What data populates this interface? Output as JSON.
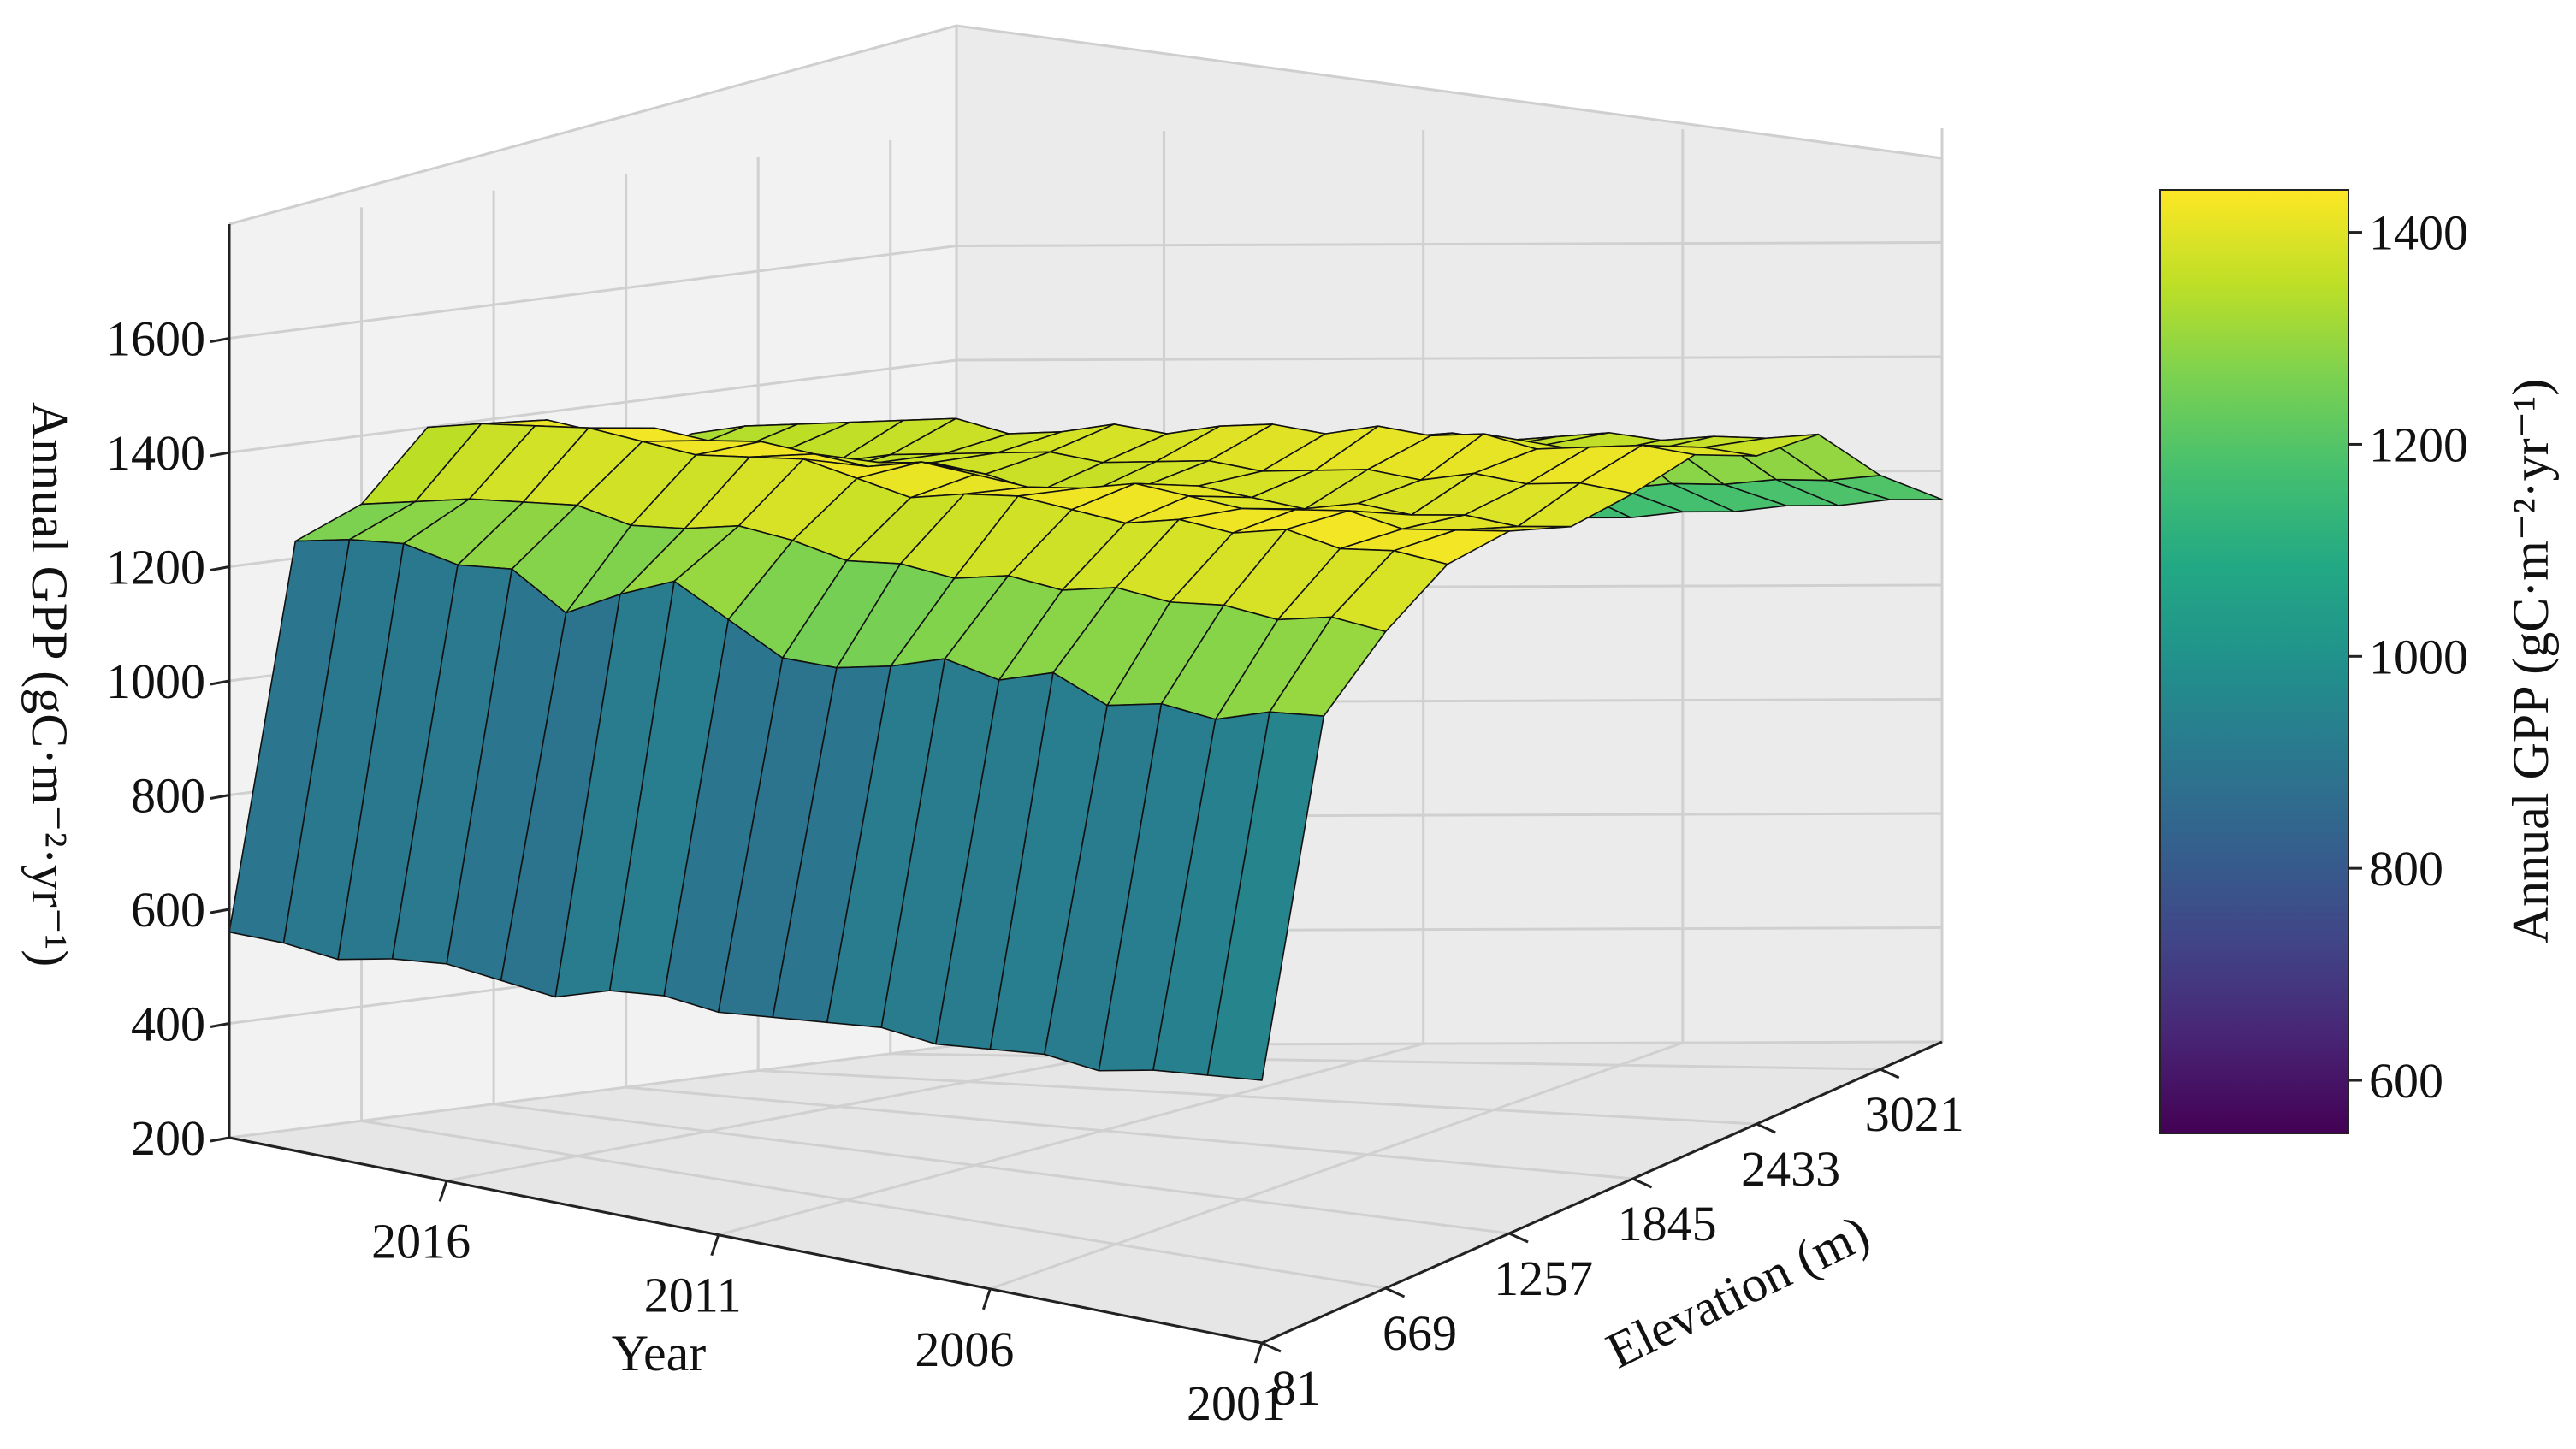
{
  "chart_data": {
    "type": "surface3d",
    "title": "",
    "zlabel": "Annual GPP (gC·m⁻²·yr⁻¹)",
    "ylabel": "Year",
    "xlabel": "Elevation (m)",
    "colorbar_label": "Annual GPP (gC·m⁻²·yr⁻¹)",
    "colormap": "viridis",
    "colorbar_range": [
      550,
      1440
    ],
    "colorbar_ticks": [
      "600",
      "800",
      "1000",
      "1200",
      "1400"
    ],
    "zlim": [
      200,
      1800
    ],
    "z_ticks": [
      "200",
      "400",
      "600",
      "800",
      "1000",
      "1200",
      "1400",
      "1600"
    ],
    "year_ticks": [
      "2016",
      "2011",
      "2006",
      "2001"
    ],
    "elevation_ticks": [
      "81",
      "669",
      "1257",
      "1845",
      "2433",
      "3021"
    ],
    "years": [
      2020,
      2019,
      2018,
      2017,
      2016,
      2015,
      2014,
      2013,
      2012,
      2011,
      2010,
      2009,
      2008,
      2007,
      2006,
      2005,
      2004,
      2003,
      2002,
      2001
    ],
    "elevations": [
      81,
      375,
      669,
      963,
      1257,
      1551,
      1845,
      2139,
      2433,
      2727,
      3021,
      3315
    ],
    "annual_gpp": [
      [
        560,
        1230,
        1280,
        1400,
        1390,
        1330,
        1300,
        1330,
        1280,
        1260,
        1120,
        1040
      ],
      [
        560,
        1250,
        1300,
        1420,
        1410,
        1350,
        1320,
        1350,
        1290,
        1270,
        1130,
        1050
      ],
      [
        550,
        1260,
        1320,
        1430,
        1400,
        1360,
        1330,
        1360,
        1300,
        1280,
        1140,
        1060
      ],
      [
        570,
        1240,
        1330,
        1440,
        1420,
        1370,
        1340,
        1370,
        1310,
        1290,
        1150,
        1070
      ],
      [
        580,
        1250,
        1340,
        1430,
        1410,
        1360,
        1330,
        1380,
        1300,
        1300,
        1160,
        1070
      ],
      [
        570,
        1190,
        1320,
        1420,
        1420,
        1340,
        1350,
        1390,
        1320,
        1300,
        1170,
        1080
      ],
      [
        560,
        1240,
        1330,
        1430,
        1410,
        1370,
        1360,
        1370,
        1330,
        1310,
        1170,
        1080
      ],
      [
        590,
        1280,
        1350,
        1440,
        1400,
        1380,
        1370,
        1380,
        1320,
        1320,
        1180,
        1090
      ],
      [
        600,
        1230,
        1340,
        1420,
        1420,
        1370,
        1380,
        1400,
        1340,
        1310,
        1180,
        1100
      ],
      [
        590,
        1180,
        1320,
        1400,
        1410,
        1350,
        1370,
        1390,
        1330,
        1320,
        1190,
        1100
      ],
      [
        600,
        1180,
        1330,
        1420,
        1400,
        1360,
        1380,
        1410,
        1340,
        1320,
        1190,
        1110
      ],
      [
        610,
        1200,
        1320,
        1430,
        1410,
        1380,
        1390,
        1420,
        1350,
        1330,
        1200,
        1110
      ],
      [
        620,
        1230,
        1340,
        1420,
        1430,
        1390,
        1380,
        1410,
        1360,
        1340,
        1200,
        1120
      ],
      [
        610,
        1210,
        1330,
        1410,
        1420,
        1380,
        1390,
        1430,
        1350,
        1330,
        1210,
        1120
      ],
      [
        620,
        1240,
        1350,
        1430,
        1410,
        1370,
        1400,
        1420,
        1360,
        1340,
        1210,
        1130
      ],
      [
        630,
        1200,
        1340,
        1420,
        1420,
        1390,
        1390,
        1430,
        1370,
        1350,
        1220,
        1130
      ],
      [
        620,
        1220,
        1350,
        1440,
        1430,
        1380,
        1410,
        1410,
        1360,
        1340,
        1220,
        1140
      ],
      [
        640,
        1210,
        1340,
        1420,
        1410,
        1390,
        1400,
        1420,
        1370,
        1350,
        1230,
        1140
      ],
      [
        650,
        1240,
        1360,
        1430,
        1420,
        1380,
        1410,
        1430,
        1380,
        1350,
        1230,
        1150
      ],
      [
        660,
        1250,
        1350,
        1420,
        1430,
        1390,
        1400,
        1420,
        1370,
        1360,
        1240,
        1150
      ]
    ]
  }
}
